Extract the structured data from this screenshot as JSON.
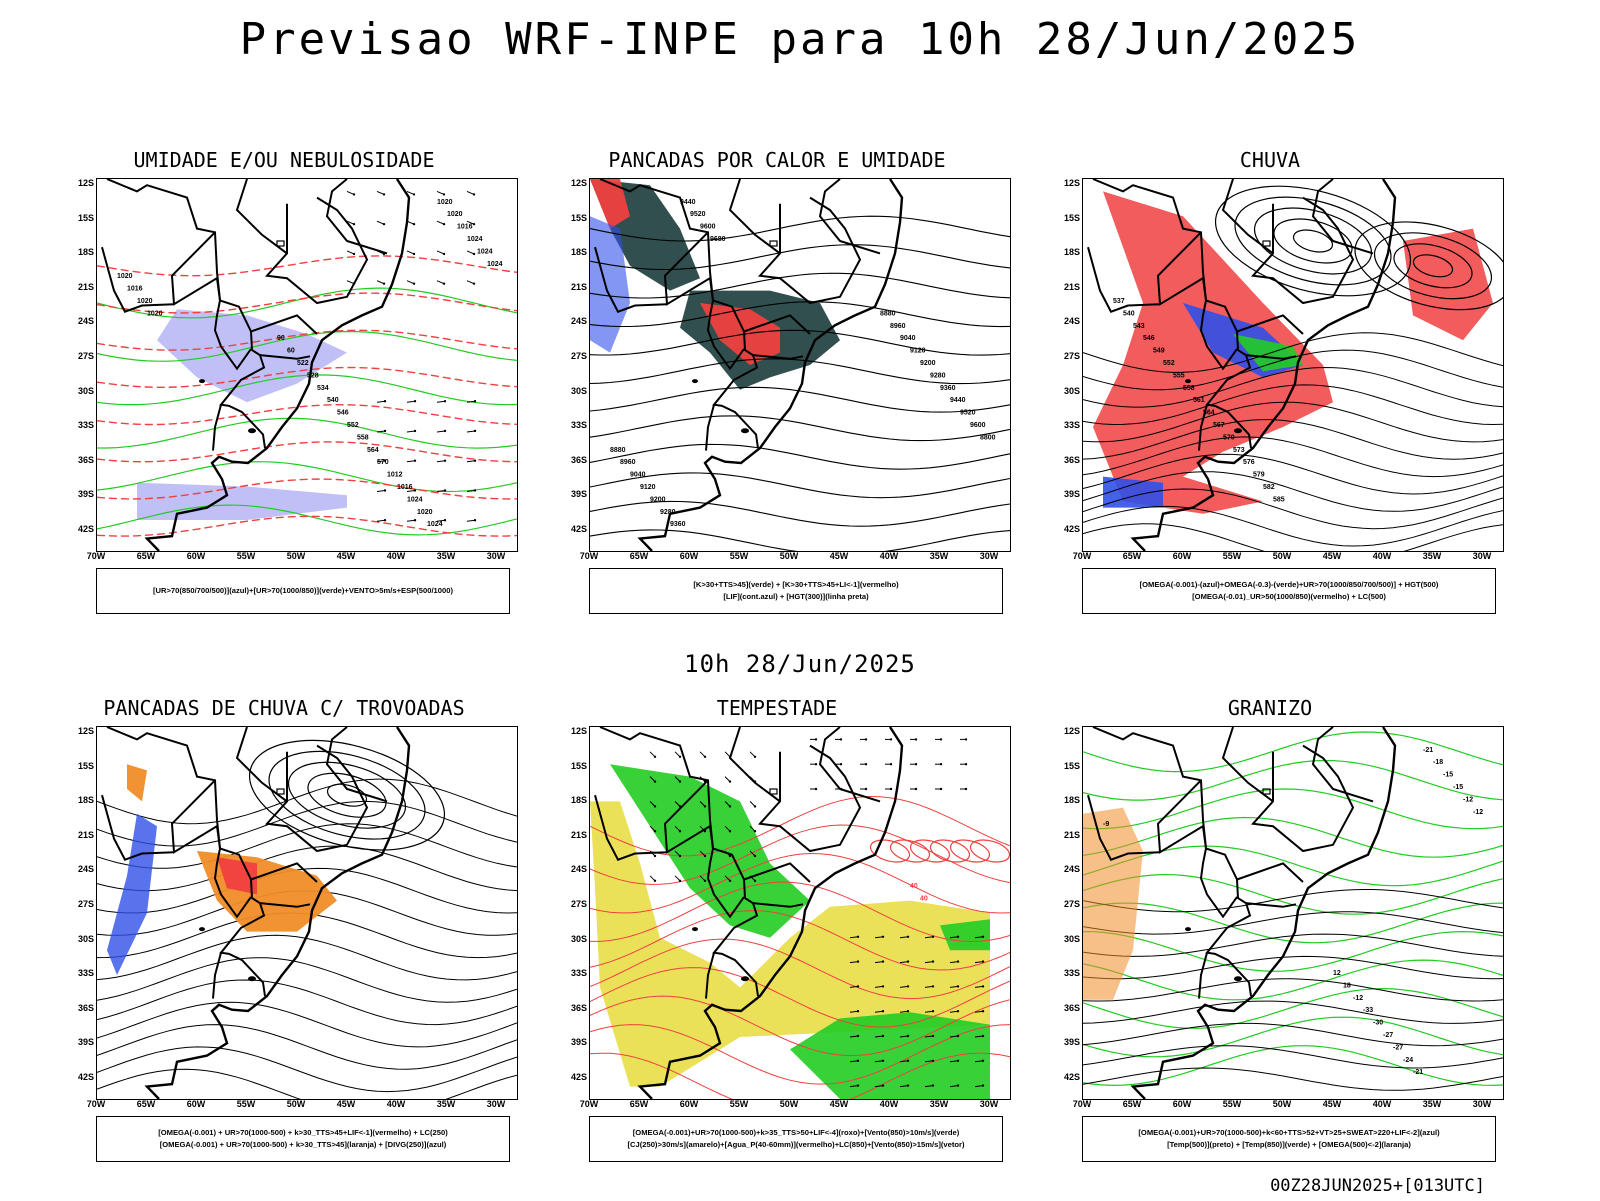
{
  "header": {
    "title": "Previsao WRF-INPE  para 10h 28/Jun/2025"
  },
  "row_title": "10h 28/Jun/2025",
  "footer": "00Z28JUN2025+[013UTC]",
  "axes": {
    "lat_labels": [
      "12S",
      "15S",
      "18S",
      "21S",
      "24S",
      "27S",
      "30S",
      "33S",
      "36S",
      "39S",
      "42S"
    ],
    "lon_labels": [
      "70W",
      "65W",
      "60W",
      "55W",
      "50W",
      "45W",
      "40W",
      "35W",
      "30W"
    ]
  },
  "colors": {
    "humidity_blue": "#8c8cf0",
    "green": "#22cc22",
    "red": "#f04040",
    "dark_teal": "#1c3c3c",
    "orange": "#f08c28",
    "yellow": "#e8dc3c",
    "blue": "#3050e8"
  },
  "panels": [
    {
      "id": "umidade",
      "title": "UMIDADE E/OU NEBULOSIDADE",
      "caption": [
        "[UR>70(850/700/500)](azul)+[UR>70(1000/850)](verde)+VENTO>5m/s+ESP(500/1000)"
      ],
      "contour_labels": [
        "1020",
        "1020",
        "1016",
        "1020",
        "1024",
        "1024",
        "1024",
        "1016",
        "1020",
        "1020",
        "1024",
        "1020",
        "1024",
        "1016",
        "1012",
        "570",
        "564",
        "558",
        "552",
        "546",
        "540",
        "534",
        "528",
        "522",
        "60",
        "90"
      ]
    },
    {
      "id": "pancadas_calor",
      "title": "PANCADAS POR CALOR E UMIDADE",
      "caption": [
        "[K>30+TTS>45](verde) + [K>30+TTS>45+LI<-1](vermelho)",
        "[LIF](cont.azul) + [HGT(300)](linha preta)"
      ],
      "contour_labels": [
        "9680",
        "9600",
        "9520",
        "9440",
        "9360",
        "9280",
        "9200",
        "9120",
        "9040",
        "8960",
        "8880",
        "8800",
        "9600",
        "9520",
        "9440",
        "9360",
        "9280",
        "9200",
        "9120",
        "9040",
        "8960",
        "8880"
      ]
    },
    {
      "id": "chuva",
      "title": "CHUVA",
      "caption": [
        "[OMEGA(-0.001)-(azul)+OMEGA(-0.3)-(verde)+UR>70(1000/850/700/500)] + HGT(500)",
        "[OMEGA(-0.01)_UR>50(1000/850)(vermelho) + LC(500)"
      ],
      "contour_labels": [
        "585",
        "582",
        "579",
        "576",
        "573",
        "570",
        "567",
        "564",
        "561",
        "558",
        "555",
        "552",
        "549",
        "546",
        "543",
        "540",
        "537"
      ]
    },
    {
      "id": "pancadas_trovoadas",
      "title": "PANCADAS DE CHUVA C/ TROVOADAS",
      "caption": [
        "[OMEGA(-0.001) + UR>70(1000-500) + k>30_TTS>45+LIF<-1](vermelho) + LC(250)",
        "[OMEGA(-0.001) + UR>70(1000-500) + k>30_TTS>45](laranja) + [DIVG(250)](azul)"
      ],
      "contour_labels": []
    },
    {
      "id": "tempestade",
      "title": "TEMPESTADE",
      "caption": [
        "[OMEGA(-0.001)+UR>70(1000-500)+k>35_TTS>50+LIF<-4](roxo)+[Vento(850)>10m/s](verde)",
        "[CJ(250)>30m/s](amarelo)+[Agua_P(40-60mm)](vermelho)+LC(850)+[Vento(850)>15m/s](vetor)"
      ],
      "contour_labels": [
        "40",
        "40"
      ]
    },
    {
      "id": "granizo",
      "title": "GRANIZO",
      "caption": [
        "[OMEGA(-0.001)+UR>70(1000-500)+k<60+TTS>52+VT>25+SWEAT>220+LIF<-2](azul)",
        "[Temp(500)](preto) + [Temp(850)](verde) + [OMEGA(500)<-2](laranja)"
      ],
      "contour_labels": [
        "-9",
        "-12",
        "-12",
        "-15",
        "-15",
        "-18",
        "-21",
        "-21",
        "-24",
        "-27",
        "-27",
        "-30",
        "-33",
        "-12",
        "18",
        "12"
      ]
    }
  ]
}
